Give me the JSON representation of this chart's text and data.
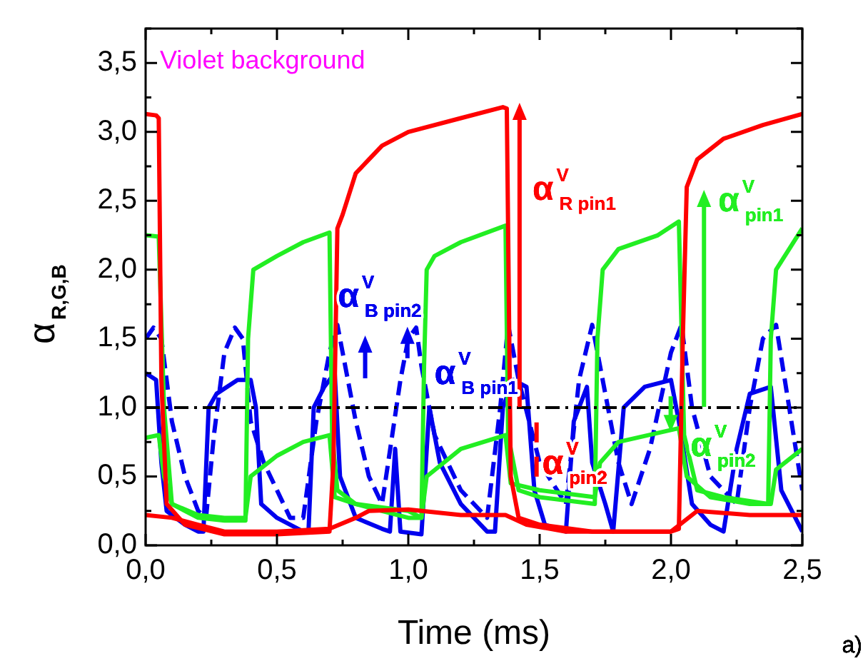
{
  "chart_data": {
    "type": "line",
    "xlabel": "Time (ms)",
    "ylabel": "α$_{R,G,B}$",
    "xlim": [
      0,
      2.5
    ],
    "ylim": [
      0,
      3.75
    ],
    "xticks": [
      {
        "value": 0,
        "label": "0,0"
      },
      {
        "value": 0.5,
        "label": "0,5"
      },
      {
        "value": 1,
        "label": "1,0"
      },
      {
        "value": 1.5,
        "label": "1,5"
      },
      {
        "value": 2,
        "label": "2,0"
      },
      {
        "value": 2.5,
        "label": "2,5"
      }
    ],
    "yticks": [
      {
        "value": 0,
        "label": "0,0"
      },
      {
        "value": 0.5,
        "label": "0,5"
      },
      {
        "value": 1,
        "label": "1,0"
      },
      {
        "value": 1.5,
        "label": "1,5"
      },
      {
        "value": 2,
        "label": "2,0"
      },
      {
        "value": 2.5,
        "label": "2,5"
      },
      {
        "value": 3,
        "label": "3,0"
      },
      {
        "value": 3.5,
        "label": "3,5"
      }
    ],
    "grid": false,
    "legend": false,
    "marker": "none",
    "series": [
      {
        "color": "#ff0000",
        "x": [
          0,
          0.04,
          0.05,
          0.06,
          0.08,
          0.15,
          0.3,
          0.5,
          0.7,
          0.715,
          0.73,
          0.75,
          0.8,
          0.9,
          1.0,
          1.2,
          1.36,
          1.375,
          1.39,
          1.42,
          1.5,
          1.7,
          2.0,
          2.03,
          2.045,
          2.06,
          2.1,
          2.2,
          2.35,
          2.5
        ],
        "values": [
          3.13,
          3.12,
          3.1,
          1.2,
          0.3,
          0.15,
          0.08,
          0.08,
          0.1,
          0.6,
          2.3,
          2.4,
          2.7,
          2.9,
          3.0,
          3.1,
          3.18,
          3.17,
          0.5,
          0.2,
          0.15,
          0.1,
          0.1,
          0.12,
          1.5,
          2.6,
          2.8,
          2.95,
          3.05,
          3.13
        ]
      },
      {
        "color": "#ff0000",
        "x": [
          0,
          0.1,
          0.2,
          0.3,
          0.5,
          0.7,
          0.8,
          0.85,
          1.0,
          1.2,
          1.37,
          1.45,
          1.6,
          2.0,
          2.1,
          2.3,
          2.5
        ],
        "values": [
          0.22,
          0.2,
          0.15,
          0.1,
          0.1,
          0.12,
          0.2,
          0.25,
          0.26,
          0.22,
          0.22,
          0.15,
          0.1,
          0.1,
          0.25,
          0.22,
          0.22
        ]
      },
      {
        "color": "#22ee22",
        "x": [
          0,
          0.05,
          0.07,
          0.1,
          0.2,
          0.3,
          0.38,
          0.39,
          0.41,
          0.5,
          0.6,
          0.7,
          0.71,
          0.73,
          0.8,
          0.9,
          1.0,
          1.05,
          1.06,
          1.07,
          1.1,
          1.2,
          1.37,
          1.38,
          1.42,
          1.5,
          1.71,
          1.72,
          1.74,
          1.8,
          1.95,
          2.03,
          2.05,
          2.1,
          2.2,
          2.37,
          2.38,
          2.4,
          2.5
        ],
        "values": [
          2.25,
          2.24,
          1.0,
          0.3,
          0.2,
          0.18,
          0.18,
          1.5,
          2.0,
          2.1,
          2.2,
          2.27,
          0.8,
          0.4,
          0.3,
          0.25,
          0.2,
          0.2,
          1.3,
          2.0,
          2.1,
          2.2,
          2.32,
          0.8,
          0.4,
          0.35,
          0.3,
          1.5,
          2.0,
          2.15,
          2.25,
          2.35,
          0.8,
          0.4,
          0.35,
          0.3,
          1.5,
          2.0,
          2.3
        ]
      },
      {
        "color": "#22ee22",
        "x": [
          0,
          0.05,
          0.07,
          0.1,
          0.2,
          0.3,
          0.38,
          0.4,
          0.5,
          0.6,
          0.7,
          0.72,
          0.8,
          1.0,
          1.05,
          1.07,
          1.2,
          1.37,
          1.39,
          1.5,
          1.71,
          1.73,
          1.8,
          2.03,
          2.06,
          2.15,
          2.3,
          2.38,
          2.4,
          2.5
        ],
        "values": [
          0.78,
          0.8,
          0.5,
          0.3,
          0.22,
          0.2,
          0.2,
          0.5,
          0.65,
          0.75,
          0.8,
          0.35,
          0.3,
          0.25,
          0.2,
          0.5,
          0.7,
          0.8,
          0.45,
          0.4,
          0.35,
          0.6,
          0.75,
          0.85,
          0.5,
          0.35,
          0.3,
          0.3,
          0.55,
          0.7
        ]
      },
      {
        "color": "#0000ee",
        "x": [
          0,
          0.04,
          0.06,
          0.08,
          0.15,
          0.2,
          0.22,
          0.24,
          0.27,
          0.35,
          0.4,
          0.42,
          0.44,
          0.5,
          0.6,
          0.62,
          0.64,
          0.68,
          0.72,
          0.74,
          0.8,
          0.9,
          0.93,
          0.95,
          0.97,
          1.05,
          1.08,
          1.12,
          1.2,
          1.3,
          1.33,
          1.36,
          1.4,
          1.45,
          1.48,
          1.52,
          1.6,
          1.63,
          1.68,
          1.7,
          1.75,
          1.78,
          1.82,
          1.9,
          2.0,
          2.03,
          2.08,
          2.15,
          2.2,
          2.25,
          2.3,
          2.38,
          2.42,
          2.5
        ],
        "values": [
          1.25,
          1.2,
          0.6,
          0.25,
          0.15,
          0.1,
          0.1,
          1.0,
          1.1,
          1.2,
          1.2,
          1.0,
          0.3,
          0.2,
          0.1,
          0.1,
          1.0,
          1.15,
          1.25,
          0.5,
          0.2,
          0.12,
          0.1,
          0.7,
          0.1,
          0.08,
          1.0,
          0.6,
          0.3,
          0.1,
          0.1,
          1.0,
          1.2,
          1.15,
          0.4,
          0.15,
          0.1,
          0.9,
          1.15,
          0.6,
          0.3,
          0.1,
          1.0,
          1.15,
          1.2,
          0.9,
          0.3,
          0.15,
          0.1,
          0.7,
          1.1,
          1.15,
          0.4,
          0.1
        ]
      },
      {
        "color": "#0000ee",
        "line_style": "dashed",
        "x": [
          0,
          0.03,
          0.06,
          0.1,
          0.15,
          0.2,
          0.23,
          0.26,
          0.3,
          0.34,
          0.37,
          0.4,
          0.45,
          0.5,
          0.55,
          0.6,
          0.65,
          0.7,
          0.73,
          0.75,
          0.8,
          0.85,
          0.9,
          0.97,
          1.0,
          1.03,
          1.05,
          1.1,
          1.2,
          1.3,
          1.35,
          1.38,
          1.42,
          1.5,
          1.6,
          1.65,
          1.7,
          1.73,
          1.8,
          1.85,
          1.92,
          2.0,
          2.04,
          2.08,
          2.15,
          2.25,
          2.3,
          2.35,
          2.4,
          2.45,
          2.5
        ],
        "values": [
          1.5,
          1.58,
          1.5,
          0.9,
          0.5,
          0.25,
          0.2,
          0.8,
          1.4,
          1.58,
          1.5,
          0.9,
          0.6,
          0.4,
          0.2,
          0.2,
          0.9,
          1.4,
          1.6,
          1.4,
          0.9,
          0.5,
          0.3,
          1.2,
          1.5,
          1.58,
          1.3,
          0.8,
          0.4,
          0.2,
          1.0,
          1.6,
          1.2,
          0.6,
          0.3,
          1.2,
          1.6,
          1.3,
          0.6,
          0.3,
          0.7,
          1.4,
          1.6,
          1.0,
          0.5,
          0.3,
          1.0,
          1.5,
          1.6,
          1.0,
          0.4
        ]
      }
    ],
    "ref_lines": [
      {
        "axis": "y",
        "value": 1,
        "color": "#000000",
        "line_style": "dashed"
      }
    ],
    "annotations": [
      "Violet background",
      "α$^{V}$$_{R pin1}$",
      "α$^{V}$$_{pin1}$",
      "α$^{V}$$_{B pin2}$",
      "α$^{V}$$_{B pin1}$",
      "α$^{V}$$_{pin2}$",
      "α$^{V}$$_{pin2}$",
      "a)"
    ]
  }
}
